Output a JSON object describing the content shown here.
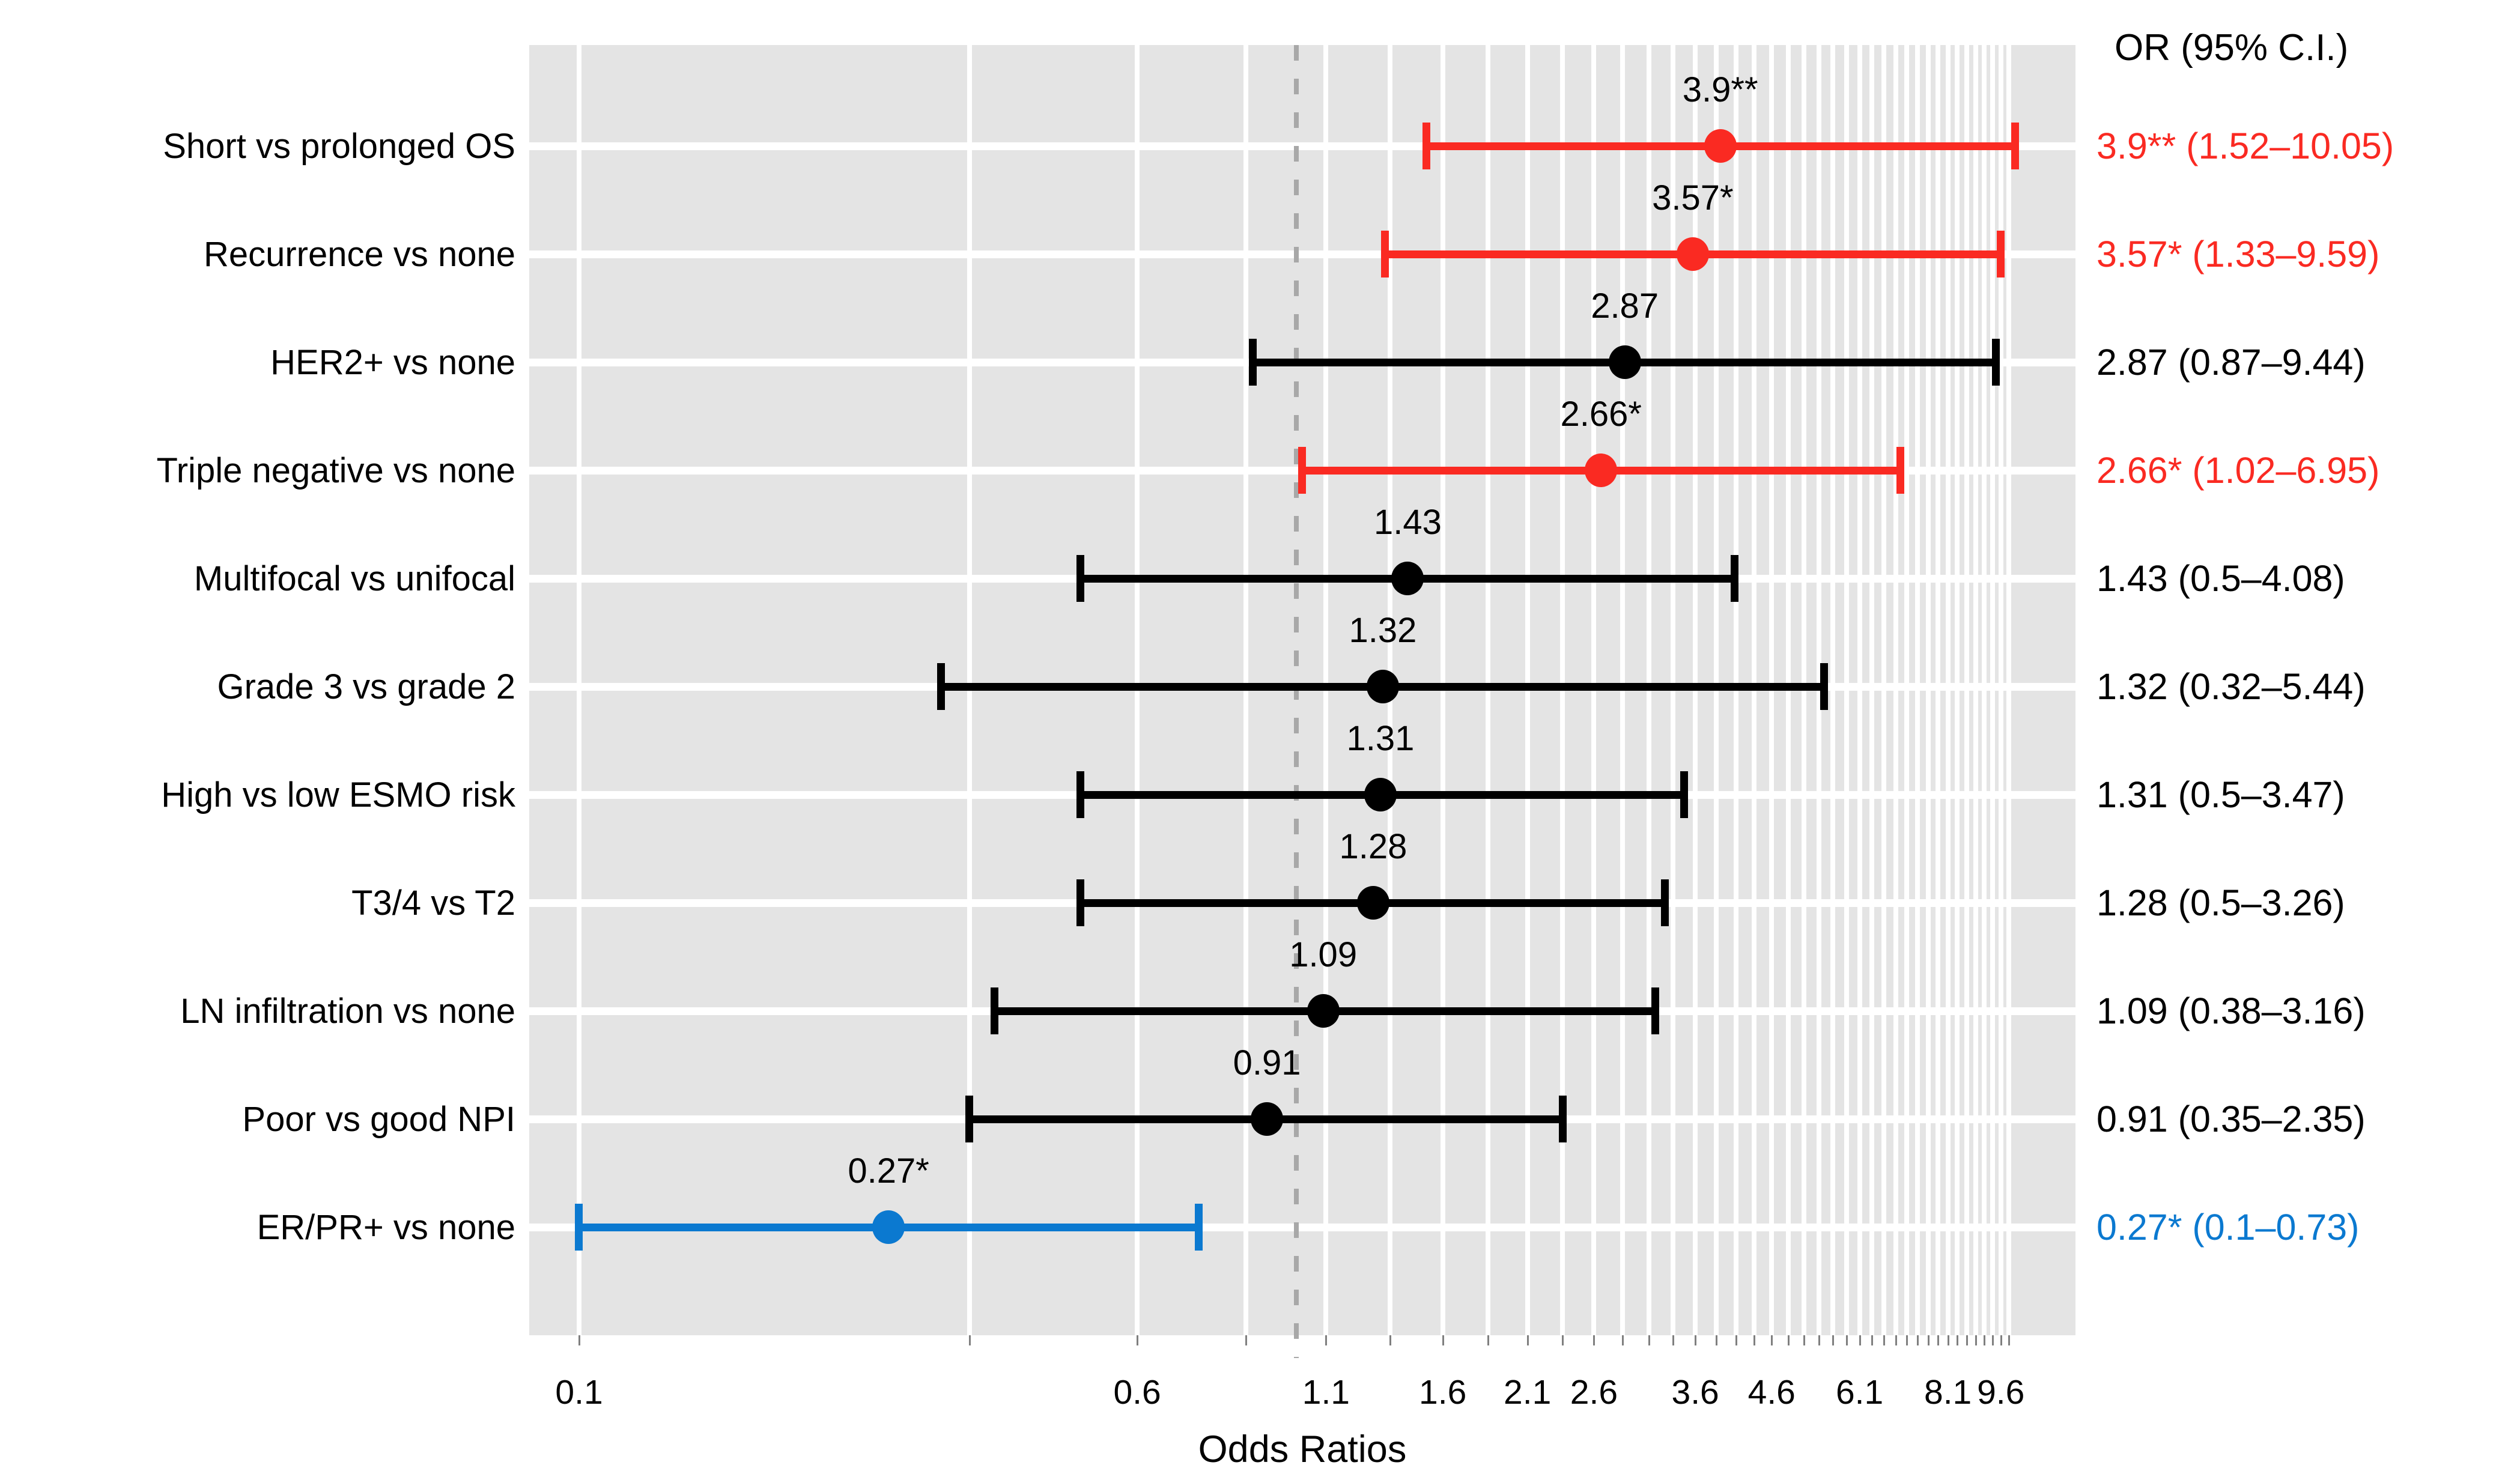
{
  "page": {
    "background": "#ffffff"
  },
  "chart_data": {
    "type": "scatter",
    "subtype": "forest-plot-odds-ratios-with-95ci",
    "title": "",
    "xlabel": "Odds Ratios",
    "ylabel": "",
    "right_column_header": "OR (95% C.I.)",
    "x_axis": {
      "scale": "log10",
      "min": 0.0852,
      "max": 12.2,
      "tick_labels": [
        "0.1",
        "0.6",
        "1.1",
        "1.6",
        "2.1",
        "2.6",
        "3.6",
        "4.6",
        "6.1",
        "8.1",
        "9.6"
      ],
      "tick_values": [
        0.1,
        0.6,
        1.1,
        1.6,
        2.1,
        2.6,
        3.6,
        4.6,
        6.1,
        8.1,
        9.6
      ],
      "minor_gridlines": {
        "start": 0.1,
        "step": 0.25,
        "count": 40
      },
      "reference_line_value": 1.0,
      "grid_on": true,
      "legend_position": "none"
    },
    "rows": [
      {
        "label": "Short vs prolonged OS",
        "or": 3.9,
        "ci_low": 1.52,
        "ci_high": 10.05,
        "point_label": "3.9**",
        "or_ci_text": "3.9** (1.52–10.05)",
        "color_key": "red"
      },
      {
        "label": "Recurrence vs none",
        "or": 3.57,
        "ci_low": 1.33,
        "ci_high": 9.59,
        "point_label": "3.57*",
        "or_ci_text": "3.57* (1.33–9.59)",
        "color_key": "red"
      },
      {
        "label": "HER2+ vs none",
        "or": 2.87,
        "ci_low": 0.87,
        "ci_high": 9.44,
        "point_label": "2.87",
        "or_ci_text": "2.87 (0.87–9.44)",
        "color_key": "black"
      },
      {
        "label": "Triple negative vs none",
        "or": 2.66,
        "ci_low": 1.02,
        "ci_high": 6.95,
        "point_label": "2.66*",
        "or_ci_text": "2.66* (1.02–6.95)",
        "color_key": "red"
      },
      {
        "label": "Multifocal vs unifocal",
        "or": 1.43,
        "ci_low": 0.5,
        "ci_high": 4.08,
        "point_label": "1.43",
        "or_ci_text": "1.43 (0.5–4.08)",
        "color_key": "black"
      },
      {
        "label": "Grade 3 vs grade 2",
        "or": 1.32,
        "ci_low": 0.32,
        "ci_high": 5.44,
        "point_label": "1.32",
        "or_ci_text": "1.32 (0.32–5.44)",
        "color_key": "black"
      },
      {
        "label": "High vs low ESMO risk",
        "or": 1.31,
        "ci_low": 0.5,
        "ci_high": 3.47,
        "point_label": "1.31",
        "or_ci_text": "1.31 (0.5–3.47)",
        "color_key": "black"
      },
      {
        "label": "T3/4 vs T2",
        "or": 1.28,
        "ci_low": 0.5,
        "ci_high": 3.26,
        "point_label": "1.28",
        "or_ci_text": "1.28 (0.5–3.26)",
        "color_key": "black"
      },
      {
        "label": "LN infiltration vs none",
        "or": 1.09,
        "ci_low": 0.38,
        "ci_high": 3.16,
        "point_label": "1.09",
        "or_ci_text": "1.09 (0.38–3.16)",
        "color_key": "black"
      },
      {
        "label": "Poor vs good NPI",
        "or": 0.91,
        "ci_low": 0.35,
        "ci_high": 2.35,
        "point_label": "0.91",
        "or_ci_text": "0.91 (0.35–2.35)",
        "color_key": "black"
      },
      {
        "label": "ER/PR+ vs none",
        "or": 0.27,
        "ci_low": 0.1,
        "ci_high": 0.73,
        "point_label": "0.27*",
        "or_ci_text": "0.27* (0.1–0.73)",
        "color_key": "blue"
      }
    ],
    "colors": {
      "red": "#fa2a22",
      "black": "#000000",
      "blue": "#0b79d0",
      "plot_background": "#e4e4e4",
      "gridline": "#ffffff",
      "reference_line": "#a8a8a8",
      "axis_tick": "#7f7f7f"
    }
  }
}
